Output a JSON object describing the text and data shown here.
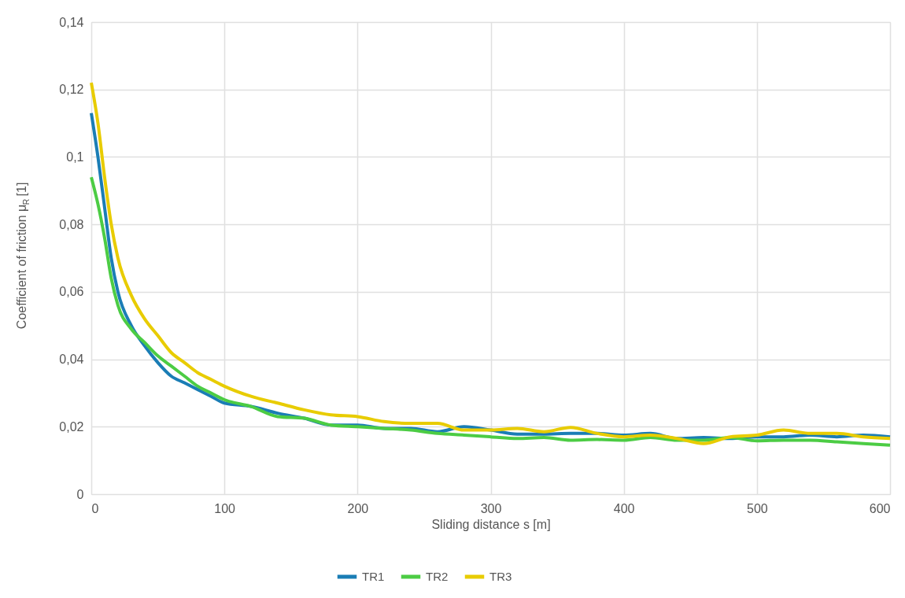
{
  "chart_data": {
    "type": "line",
    "xlabel": "Sliding distance s [m]",
    "ylabel": "Coefficient of friction μ$_{R}$ [1]",
    "x": [
      0,
      5,
      10,
      15,
      20,
      30,
      40,
      50,
      60,
      70,
      80,
      90,
      100,
      120,
      140,
      160,
      180,
      200,
      220,
      240,
      260,
      280,
      300,
      320,
      340,
      360,
      380,
      400,
      420,
      440,
      460,
      480,
      500,
      520,
      540,
      560,
      580,
      600
    ],
    "series": [
      {
        "name": "TR1",
        "color": "#1a7db5",
        "values": [
          0.113,
          0.1,
          0.085,
          0.07,
          0.06,
          0.05,
          0.044,
          0.039,
          0.035,
          0.033,
          0.031,
          0.029,
          0.027,
          0.026,
          0.024,
          0.0225,
          0.0205,
          0.0205,
          0.0195,
          0.0195,
          0.0185,
          0.02,
          0.019,
          0.0178,
          0.0178,
          0.018,
          0.018,
          0.0175,
          0.018,
          0.0165,
          0.0168,
          0.0165,
          0.017,
          0.017,
          0.0175,
          0.017,
          0.0175,
          0.017
        ]
      },
      {
        "name": "TR2",
        "color": "#4ccc44",
        "values": [
          0.094,
          0.086,
          0.076,
          0.064,
          0.056,
          0.049,
          0.045,
          0.041,
          0.038,
          0.035,
          0.032,
          0.03,
          0.028,
          0.026,
          0.023,
          0.0225,
          0.0205,
          0.02,
          0.0195,
          0.019,
          0.018,
          0.0175,
          0.017,
          0.0165,
          0.0168,
          0.016,
          0.0162,
          0.016,
          0.0168,
          0.016,
          0.016,
          0.0168,
          0.0158,
          0.016,
          0.016,
          0.0155,
          0.015,
          0.0145
        ]
      },
      {
        "name": "TR3",
        "color": "#e8cc00",
        "values": [
          0.122,
          0.11,
          0.094,
          0.08,
          0.07,
          0.059,
          0.052,
          0.047,
          0.042,
          0.039,
          0.036,
          0.034,
          0.032,
          0.029,
          0.027,
          0.025,
          0.0235,
          0.023,
          0.0215,
          0.021,
          0.021,
          0.019,
          0.019,
          0.0195,
          0.0185,
          0.0198,
          0.018,
          0.017,
          0.0175,
          0.0165,
          0.015,
          0.017,
          0.0175,
          0.019,
          0.018,
          0.018,
          0.017,
          0.0165
        ]
      }
    ],
    "xlim": [
      0,
      600
    ],
    "xticks": [
      0,
      100,
      200,
      300,
      400,
      500,
      600
    ],
    "ylim": [
      0,
      0.14
    ],
    "yticks": [
      0,
      {
        "value": 0.02,
        "label": "0,02"
      },
      {
        "value": 0.04,
        "label": "0,04"
      },
      {
        "value": 0.06,
        "label": "0,06"
      },
      {
        "value": 0.08,
        "label": "0,08"
      },
      {
        "value": 0.1,
        "label": "0,1"
      },
      {
        "value": 0.12,
        "label": "0,12"
      },
      {
        "value": 0.14,
        "label": "0,14"
      }
    ],
    "grid": true,
    "legend": "bottom",
    "marker": "none",
    "line_style": "solid"
  }
}
